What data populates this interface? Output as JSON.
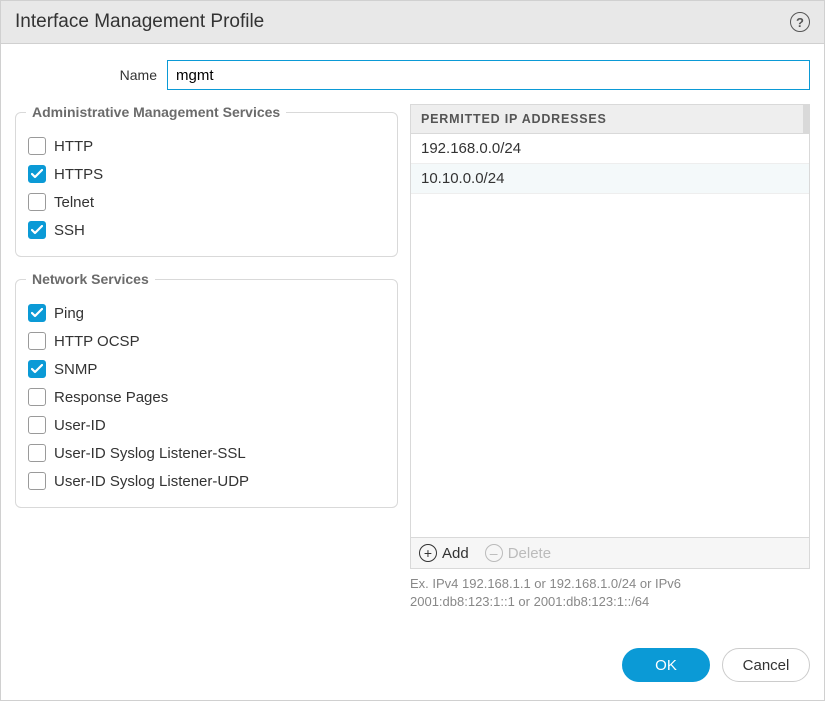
{
  "dialog": {
    "title": "Interface Management Profile"
  },
  "name_field": {
    "label": "Name",
    "value": "mgmt"
  },
  "admin_services": {
    "legend": "Administrative Management Services",
    "items": [
      {
        "key": "http",
        "label": "HTTP",
        "checked": false
      },
      {
        "key": "https",
        "label": "HTTPS",
        "checked": true
      },
      {
        "key": "telnet",
        "label": "Telnet",
        "checked": false
      },
      {
        "key": "ssh",
        "label": "SSH",
        "checked": true
      }
    ]
  },
  "network_services": {
    "legend": "Network Services",
    "items": [
      {
        "key": "ping",
        "label": "Ping",
        "checked": true
      },
      {
        "key": "http-ocsp",
        "label": "HTTP OCSP",
        "checked": false
      },
      {
        "key": "snmp",
        "label": "SNMP",
        "checked": true
      },
      {
        "key": "resp-pages",
        "label": "Response Pages",
        "checked": false
      },
      {
        "key": "user-id",
        "label": "User-ID",
        "checked": false
      },
      {
        "key": "uid-ssl",
        "label": "User-ID Syslog Listener-SSL",
        "checked": false
      },
      {
        "key": "uid-udp",
        "label": "User-ID Syslog Listener-UDP",
        "checked": false
      }
    ]
  },
  "permitted_ips": {
    "header": "PERMITTED IP ADDRESSES",
    "rows": [
      "192.168.0.0/24",
      "10.10.0.0/24"
    ],
    "add_label": "Add",
    "delete_label": "Delete",
    "hint_line1": "Ex. IPv4 192.168.1.1 or 192.168.1.0/24 or IPv6",
    "hint_line2": "2001:db8:123:1::1 or 2001:db8:123:1::/64"
  },
  "buttons": {
    "ok": "OK",
    "cancel": "Cancel"
  },
  "colors": {
    "accent": "#0b9ad6",
    "titlebar_bg": "#e8e8e8",
    "border": "#d9d9d9",
    "legend_text": "#6b6b6b",
    "hint_text": "#888888",
    "row_alt_bg": "#f4f9fa",
    "toolbar_bg": "#f6f6f6"
  }
}
